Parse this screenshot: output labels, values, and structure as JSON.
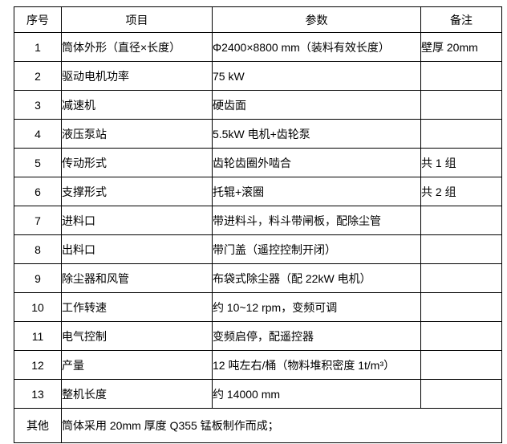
{
  "table": {
    "headers": [
      "序号",
      "项目",
      "参数",
      "备注"
    ],
    "rows": [
      {
        "no": "1",
        "item": "筒体外形（直径×长度）",
        "param": "Φ2400×8800 mm（装料有效长度）",
        "note": "壁厚 20mm"
      },
      {
        "no": "2",
        "item": "驱动电机功率",
        "param": "75 kW",
        "note": ""
      },
      {
        "no": "3",
        "item": "减速机",
        "param": "硬齿面",
        "note": ""
      },
      {
        "no": "4",
        "item": "液压泵站",
        "param": "5.5kW 电机+齿轮泵",
        "note": ""
      },
      {
        "no": "5",
        "item": "传动形式",
        "param": "齿轮齿圈外啮合",
        "note": "共 1 组"
      },
      {
        "no": "6",
        "item": "支撑形式",
        "param": "托辊+滚圈",
        "note": "共 2 组"
      },
      {
        "no": "7",
        "item": "进料口",
        "param": "带进料斗，料斗带闸板，配除尘管",
        "note": ""
      },
      {
        "no": "8",
        "item": "出料口",
        "param": "带门盖（遥控控制开闭）",
        "note": ""
      },
      {
        "no": "9",
        "item": "除尘器和风管",
        "param": "布袋式除尘器（配 22kW 电机）",
        "note": ""
      },
      {
        "no": "10",
        "item": "工作转速",
        "param": "约 10~12 rpm，变频可调",
        "note": ""
      },
      {
        "no": "11",
        "item": "电气控制",
        "param": "变频启停，配遥控器",
        "note": ""
      },
      {
        "no": "12",
        "item": "产量",
        "param": "12 吨左右/桶（物料堆积密度 1t/m³）",
        "note": ""
      },
      {
        "no": "13",
        "item": "整机长度",
        "param": "约 14000 mm",
        "note": ""
      }
    ],
    "footer": {
      "no": "其他",
      "text": "筒体采用 20mm 厚度 Q355 锰板制作而成；"
    }
  }
}
